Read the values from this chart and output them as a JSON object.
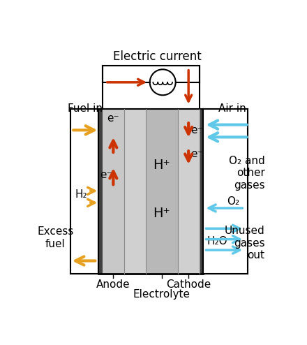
{
  "fig_width": 4.4,
  "fig_height": 4.94,
  "dpi": 100,
  "bg_color": "#ffffff",
  "title": "Electric current",
  "anode_label": "Anode",
  "cathode_label": "Cathode",
  "electrolyte_label": "Electrolyte",
  "fuel_in": "Fuel in",
  "air_in": "Air in",
  "excess_fuel": "Excess\nfuel",
  "o2_and_other": "O₂ and\nother\ngases",
  "unused_gases": "Unused\ngases\nout",
  "color_orange": "#E8A020",
  "color_blue": "#60C8E8",
  "color_red": "#CC3300",
  "color_anode_fill": "#C8C8C8",
  "color_electrolyte_light": "#C0C0C0",
  "color_electrolyte_dark": "#A8A8A8",
  "color_cathode_fill": "#D8D8D8"
}
